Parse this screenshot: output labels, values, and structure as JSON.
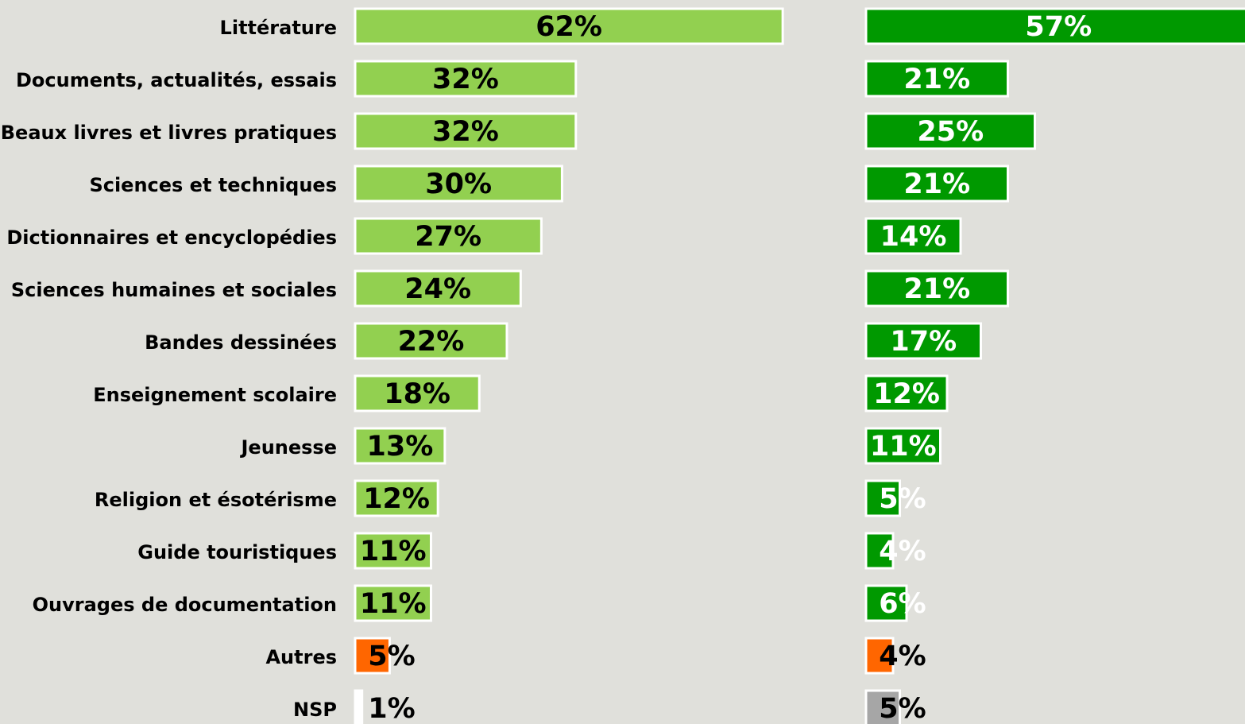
{
  "chart_data": {
    "type": "bar",
    "orientation": "horizontal",
    "categories": [
      "Littérature",
      "Documents, actualités, essais",
      "Beaux livres et livres pratiques",
      "Sciences et techniques",
      "Dictionnaires et encyclopédies",
      "Sciences humaines et sociales",
      "Bandes dessinées",
      "Enseignement scolaire",
      "Jeunesse",
      "Religion et ésotérisme",
      "Guide touristiques",
      "Ouvrages de documentation",
      "Autres",
      "NSP"
    ],
    "series": [
      {
        "values": [
          62,
          32,
          32,
          30,
          27,
          24,
          22,
          18,
          13,
          12,
          11,
          11,
          5,
          1
        ],
        "value_labels": [
          "62%",
          "32%",
          "32%",
          "30%",
          "27%",
          "24%",
          "22%",
          "18%",
          "13%",
          "12%",
          "11%",
          "11%",
          "5%",
          "1%"
        ],
        "colors": [
          "#92d050",
          "#92d050",
          "#92d050",
          "#92d050",
          "#92d050",
          "#92d050",
          "#92d050",
          "#92d050",
          "#92d050",
          "#92d050",
          "#92d050",
          "#92d050",
          "#ff6600",
          "#ffffff"
        ],
        "label_colors": [
          "#000000",
          "#000000",
          "#000000",
          "#000000",
          "#000000",
          "#000000",
          "#000000",
          "#000000",
          "#000000",
          "#000000",
          "#000000",
          "#000000",
          "#000000",
          "#000000"
        ]
      },
      {
        "values": [
          57,
          21,
          25,
          21,
          14,
          21,
          17,
          12,
          11,
          5,
          4,
          6,
          4,
          5
        ],
        "value_labels": [
          "57%",
          "21%",
          "25%",
          "21%",
          "14%",
          "21%",
          "17%",
          "12%",
          "11%",
          "5%",
          "4%",
          "6%",
          "4%",
          "5%"
        ],
        "colors": [
          "#009900",
          "#009900",
          "#009900",
          "#009900",
          "#009900",
          "#009900",
          "#009900",
          "#009900",
          "#009900",
          "#009900",
          "#009900",
          "#009900",
          "#ff6600",
          "#a6a6a6"
        ],
        "label_colors": [
          "#ffffff",
          "#ffffff",
          "#ffffff",
          "#ffffff",
          "#ffffff",
          "#ffffff",
          "#ffffff",
          "#ffffff",
          "#ffffff",
          "#ffffff",
          "#ffffff",
          "#ffffff",
          "#000000",
          "#000000"
        ]
      }
    ]
  }
}
